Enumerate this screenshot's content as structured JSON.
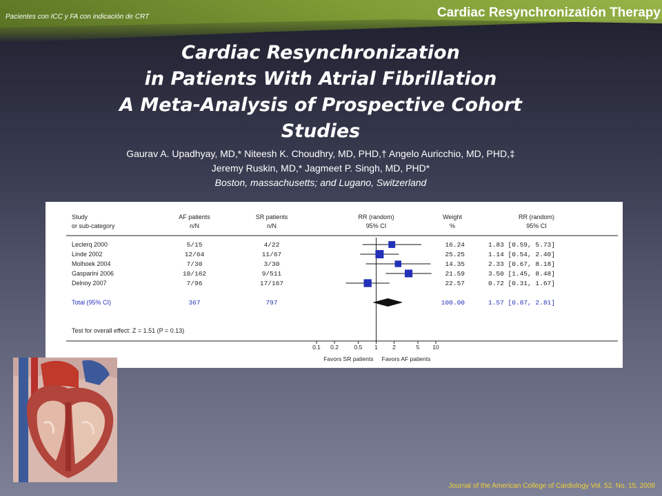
{
  "header": {
    "note": "Pacientes con ICC y FA con indicación de CRT",
    "title": "Cardiac Resynchronizatión Therapy"
  },
  "title_lines": [
    "Cardiac Resynchronization",
    "in Patients With Atrial Fibrillation",
    "A Meta-Analysis of Prospective Cohort",
    "Studies"
  ],
  "authors": {
    "line1": "Gaurav A. Upadhyay, MD,* Niteesh K. Choudhry, MD, PHD,† Angelo Auricchio, MD, PHD,‡",
    "line2": "Jeremy Ruskin, MD,* Jagmeet P. Singh, MD, PHD*",
    "location": "Boston, massachusetts; and Lugano, Switzerland"
  },
  "citation": "Journal of the American College of Cardiology Vol. 52, No. 15, 2008",
  "icons": {
    "heart": "heart-anatomy-illustration"
  },
  "colors": {
    "accent_green": "#7e9b34",
    "citation_yellow": "#f1d23a",
    "plot_blue": "#2330b8"
  },
  "chart_data": {
    "type": "forest",
    "headers": {
      "study": [
        "Study",
        "or sub-category"
      ],
      "af": [
        "AF patients",
        "n/N"
      ],
      "sr": [
        "SR patients",
        "n/N"
      ],
      "rr": [
        "RR (random)",
        "95% CI"
      ],
      "weight": [
        "Weight",
        "%"
      ],
      "rr_text": [
        "RR (random)",
        "95% CI"
      ]
    },
    "studies": [
      {
        "name": "Leclerq 2000",
        "af": "5/15",
        "sr": "4/22",
        "rr": 1.83,
        "lo": 0.59,
        "hi": 5.73,
        "weight": "16.24",
        "ci_text": "1.83 [0.59, 5.73]"
      },
      {
        "name": "Linde 2002",
        "af": "12/64",
        "sr": "11/67",
        "rr": 1.14,
        "lo": 0.54,
        "hi": 2.4,
        "weight": "25.25",
        "ci_text": "1.14 [0.54, 2.40]"
      },
      {
        "name": "Molhoek 2004",
        "af": "7/30",
        "sr": "3/30",
        "rr": 2.33,
        "lo": 0.67,
        "hi": 8.18,
        "weight": "14.35",
        "ci_text": "2.33 [0.67, 8.18]"
      },
      {
        "name": "Gasparini 2006",
        "af": "10/162",
        "sr": "9/511",
        "rr": 3.5,
        "lo": 1.45,
        "hi": 8.48,
        "weight": "21.59",
        "ci_text": "3.50 [1.45, 8.48]"
      },
      {
        "name": "Delnoy 2007",
        "af": "7/96",
        "sr": "17/167",
        "rr": 0.72,
        "lo": 0.31,
        "hi": 1.67,
        "weight": "22.57",
        "ci_text": "0.72 [0.31, 1.67]"
      }
    ],
    "total": {
      "name": "Total (95% CI)",
      "af": "367",
      "sr": "797",
      "rr": 1.57,
      "lo": 0.87,
      "hi": 2.81,
      "weight": "100.00",
      "ci_text": "1.57 [0.87, 2.81]"
    },
    "overall_test": "Test for overall effect: Z = 1.51 (P = 0.13)",
    "x_scale": "log",
    "xlim": [
      0.1,
      10
    ],
    "ticks": [
      0.1,
      0.2,
      0.5,
      1,
      2,
      5,
      10
    ],
    "tick_labels": [
      "0.1",
      "0.2",
      "0.5",
      "1",
      "2",
      "5",
      "10"
    ],
    "favors_left": "Favors SR patients",
    "favors_right": "Favors AF patients"
  }
}
